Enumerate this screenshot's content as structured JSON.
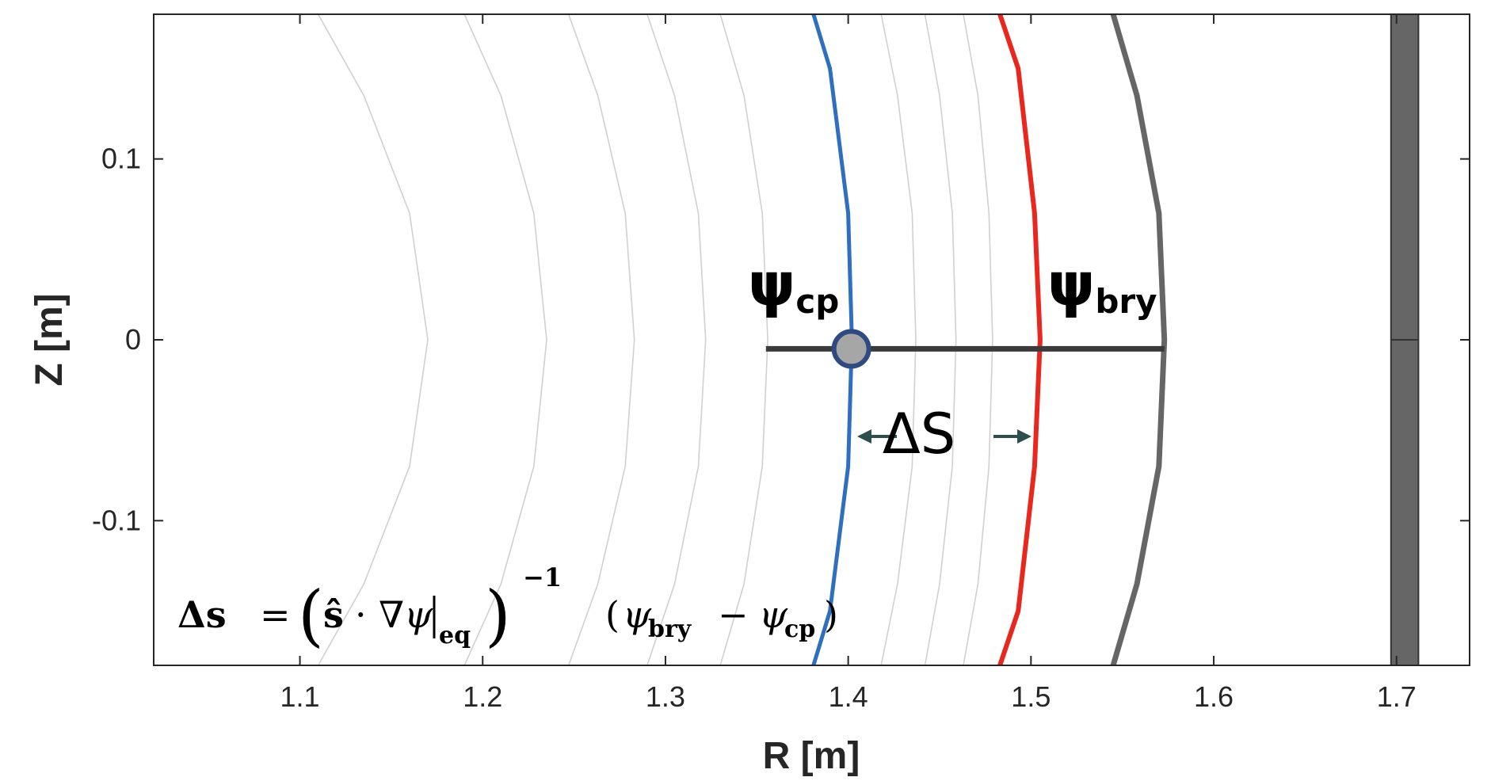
{
  "chart_data": {
    "type": "line",
    "xlabel": "R [m]",
    "ylabel": "Z [m]",
    "xlim": [
      1.02,
      1.74
    ],
    "ylim": [
      -0.18,
      0.18
    ],
    "x_ticks": [
      "1.1",
      "1.2",
      "1.3",
      "1.4",
      "1.5",
      "1.6",
      "1.7"
    ],
    "y_ticks": [
      "0.1",
      "0",
      "-0.1"
    ],
    "grid": false,
    "flux_contours": [
      {
        "z": [
          0.18,
          0.135,
          0.07,
          0.0,
          -0.07,
          -0.135,
          -0.18
        ],
        "r": [
          1.11,
          1.135,
          1.16,
          1.17,
          1.16,
          1.135,
          1.11
        ]
      },
      {
        "z": [
          0.18,
          0.135,
          0.07,
          0.0,
          -0.07,
          -0.135,
          -0.18
        ],
        "r": [
          1.19,
          1.21,
          1.228,
          1.235,
          1.228,
          1.21,
          1.19
        ]
      },
      {
        "z": [
          0.18,
          0.135,
          0.07,
          0.0,
          -0.07,
          -0.135,
          -0.18
        ],
        "r": [
          1.247,
          1.263,
          1.278,
          1.283,
          1.278,
          1.263,
          1.247
        ]
      },
      {
        "z": [
          0.18,
          0.135,
          0.07,
          0.0,
          -0.07,
          -0.135,
          -0.18
        ],
        "r": [
          1.29,
          1.305,
          1.318,
          1.322,
          1.318,
          1.305,
          1.29
        ]
      },
      {
        "z": [
          0.18,
          0.135,
          0.07,
          0.0,
          -0.07,
          -0.135,
          -0.18
        ],
        "r": [
          1.33,
          1.343,
          1.353,
          1.356,
          1.353,
          1.343,
          1.33
        ]
      },
      {
        "z": [
          0.18,
          0.135,
          0.07,
          0.0,
          -0.07,
          -0.135,
          -0.18
        ],
        "r": [
          1.418,
          1.427,
          1.435,
          1.437,
          1.435,
          1.427,
          1.418
        ]
      },
      {
        "z": [
          0.18,
          0.135,
          0.07,
          0.0,
          -0.07,
          -0.135,
          -0.18
        ],
        "r": [
          1.442,
          1.45,
          1.457,
          1.459,
          1.457,
          1.45,
          1.442
        ]
      },
      {
        "z": [
          0.18,
          0.135,
          0.07,
          0.0,
          -0.07,
          -0.135,
          -0.18
        ],
        "r": [
          1.463,
          1.471,
          1.477,
          1.479,
          1.477,
          1.471,
          1.463
        ]
      }
    ],
    "series": [
      {
        "z": [
          0.18,
          0.15,
          0.07,
          0.0,
          -0.07,
          -0.15,
          -0.18
        ],
        "r": [
          1.381,
          1.39,
          1.4,
          1.402,
          1.4,
          1.39,
          1.381
        ],
        "color": "#2e6fc0"
      },
      {
        "z": [
          0.18,
          0.15,
          0.07,
          0.0,
          -0.07,
          -0.15,
          -0.18
        ],
        "r": [
          1.483,
          1.493,
          1.502,
          1.505,
          1.502,
          1.493,
          1.483
        ],
        "color": "#e8271f"
      },
      {
        "z": [
          0.18,
          0.135,
          0.07,
          0.0,
          -0.07,
          -0.135,
          -0.18
        ],
        "r": [
          1.545,
          1.558,
          1.57,
          1.573,
          1.57,
          1.558,
          1.545
        ],
        "color": "#666666"
      }
    ],
    "wall": {
      "r_min": 1.697,
      "r_max": 1.712,
      "color": "#666666"
    },
    "chord": {
      "r_start": 1.355,
      "r_end": 1.573,
      "z": -0.005,
      "color": "#3a3a3a"
    },
    "control_point": {
      "r": 1.4,
      "z": -0.005,
      "fill": "#a6a6a6",
      "stroke": "#2f4a80"
    },
    "delta_arrow_color": "#2f4f4f",
    "annotations": {
      "psi_cp_symbol": "ψ",
      "psi_cp_sub": "cp",
      "psi_bry_symbol": "ψ",
      "psi_bry_sub": "bry",
      "delta_s": "ΔS"
    },
    "formula": {
      "lhs": "Δs",
      "eq": "=",
      "hat_s": "ŝ",
      "dot": "·",
      "nabla_psi": "∇ψ",
      "eq_sub": "eq",
      "exponent": "−1",
      "psi": "ψ",
      "bry_sub": "bry",
      "minus": "−",
      "cp_sub": "cp"
    }
  }
}
